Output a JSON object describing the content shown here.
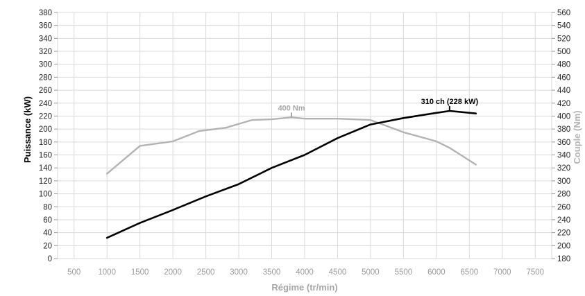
{
  "chart_data": {
    "type": "line",
    "xlabel": "Régime (tr/min)",
    "ylabel_left": "Puissance (kW)",
    "ylabel_right": "Couple (Nm)",
    "xlim": [
      250,
      7750
    ],
    "x_ticks": [
      500,
      1000,
      1500,
      2000,
      2500,
      3000,
      3500,
      4000,
      4500,
      5000,
      5500,
      6000,
      6500,
      7000,
      7500
    ],
    "ylim_left": [
      0,
      380
    ],
    "y_ticks_left": [
      0,
      20,
      40,
      60,
      80,
      100,
      120,
      140,
      160,
      180,
      200,
      220,
      240,
      260,
      280,
      300,
      320,
      340,
      360,
      380
    ],
    "ylim_right": [
      180,
      560
    ],
    "y_ticks_right": [
      180,
      200,
      220,
      240,
      260,
      280,
      300,
      320,
      340,
      360,
      380,
      400,
      420,
      440,
      460,
      480,
      500,
      520,
      540,
      560
    ],
    "grid": true,
    "colors": {
      "power": "#000000",
      "torque": "#b3b3b3",
      "grid": "#d9d9d9"
    },
    "series": [
      {
        "axis": "left",
        "x": [
          1000,
          1500,
          2000,
          2500,
          3000,
          3500,
          4000,
          4500,
          5000,
          5500,
          6000,
          6200,
          6600
        ],
        "y": [
          32,
          55,
          75,
          96,
          115,
          140,
          160,
          186,
          207,
          217,
          225,
          228,
          224
        ]
      },
      {
        "axis": "right",
        "x": [
          1000,
          1500,
          2000,
          2400,
          2800,
          3200,
          3500,
          3800,
          4000,
          4500,
          5000,
          5500,
          6000,
          6200,
          6600
        ],
        "y": [
          311,
          354,
          361,
          377,
          382,
          394,
          395,
          398,
          396,
          396,
          394,
          375,
          361,
          351,
          325
        ]
      }
    ],
    "annotations": [
      {
        "text": "310 ch (228 kW)",
        "x": 6200,
        "y": 228,
        "axis": "left"
      },
      {
        "text": "400 Nm",
        "x": 3800,
        "y": 398,
        "axis": "right"
      }
    ]
  }
}
